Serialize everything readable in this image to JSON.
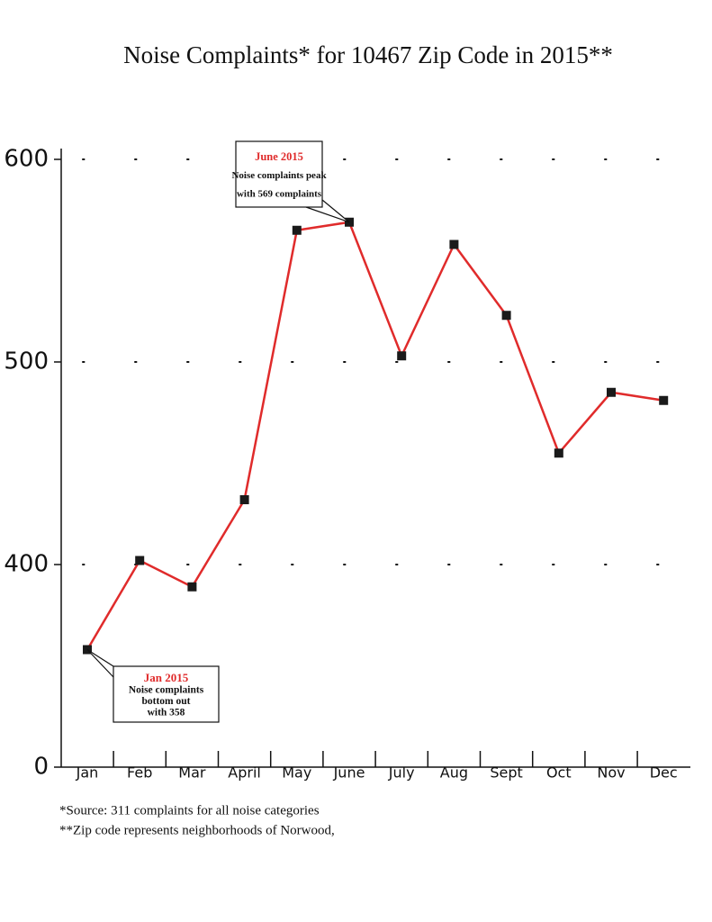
{
  "chart_data": {
    "type": "line",
    "title": "Noise Complaints* for 10467 Zip Code in 2015**",
    "categories": [
      "Jan",
      "Feb",
      "Mar",
      "April",
      "May",
      "June",
      "July",
      "Aug",
      "Sept",
      "Oct",
      "Nov",
      "Dec"
    ],
    "series": [
      {
        "name": "Noise complaints",
        "color": "#e02b2b",
        "marker_color": "#1a1a1a",
        "values": [
          358,
          402,
          389,
          432,
          565,
          569,
          503,
          558,
          523,
          455,
          485,
          481
        ]
      }
    ],
    "ylim": [
      300,
      600
    ],
    "yticks": [
      {
        "value": 300,
        "label": "0"
      },
      400,
      500,
      600
    ],
    "grid": true,
    "annotations": [
      {
        "title": "June 2015",
        "lines": [
          "Noise complaints peak",
          "with 569 complaints"
        ]
      },
      {
        "title": "Jan 2015",
        "lines": [
          "Noise complaints",
          "bottom out",
          "with 358"
        ]
      }
    ],
    "footnotes": [
      "*Source: 311 complaints for all noise categories",
      "**Zip code represents neighborhoods of Norwood,"
    ]
  }
}
